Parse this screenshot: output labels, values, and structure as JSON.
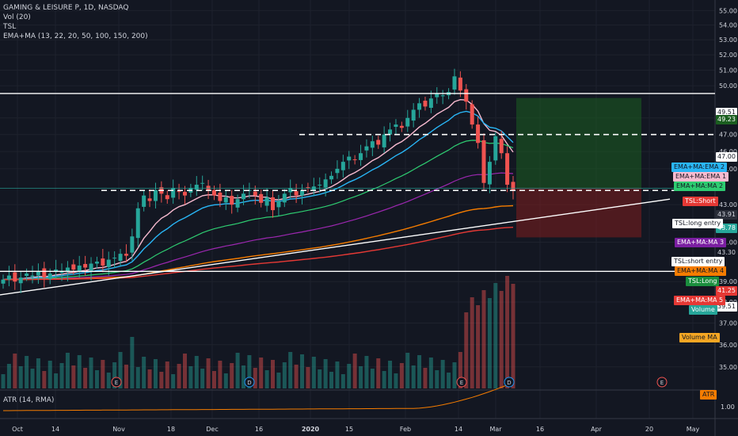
{
  "header": {
    "symbol_line": "GAMING & LEISURE P, 1D, NASDAQ",
    "indicators": [
      "Vol (20)",
      "TSL",
      "EMA+MA (13, 22, 20, 50, 100, 150, 200)"
    ]
  },
  "atr_pane": {
    "label": "ATR (14, RMA)",
    "axis_value": "1.00",
    "tag": "ATR"
  },
  "price_axis": {
    "ticks": [
      "55.00",
      "54.00",
      "53.00",
      "52.00",
      "51.00",
      "50.00",
      "48.00",
      "47.00",
      "46.00",
      "45.00",
      "43.00",
      "41.00",
      "39.00",
      "38.00",
      "37.00",
      "36.00",
      "35.00"
    ]
  },
  "price_tags": [
    {
      "text": "49.51",
      "bg": "#ffffff",
      "fg": "#131722"
    },
    {
      "text": "49.23",
      "bg": "#1b5e20",
      "fg": "#ffffff"
    },
    {
      "text": "47.00",
      "bg": "#ffffff",
      "fg": "#131722"
    },
    {
      "text": "43.91",
      "bg": "#2a2e39",
      "fg": "#d1d4dc"
    },
    {
      "text": "43.78",
      "bg": "#26a69a",
      "fg": "#ffffff"
    },
    {
      "text": "43.30",
      "bg": "#131722",
      "fg": "#d1d4dc"
    },
    {
      "text": "41.25",
      "bg": "#e53935",
      "fg": "#ffffff"
    },
    {
      "text": "39.51",
      "bg": "#ffffff",
      "fg": "#131722"
    }
  ],
  "legend_tags": [
    {
      "text": "EMA+MA:EMA 2",
      "bg": "#29b6f6",
      "fg": "#131722"
    },
    {
      "text": "EMA+MA:EMA 1",
      "bg": "#f8bbd0",
      "fg": "#131722"
    },
    {
      "text": "EMA+MA:MA 2",
      "bg": "#2ecc71",
      "fg": "#131722"
    },
    {
      "text": "TSL:Short",
      "bg": "#e53935",
      "fg": "#ffffff"
    },
    {
      "text": "TSL:long entry",
      "bg": "#ffffff",
      "fg": "#131722"
    },
    {
      "text": "EMA+MA:MA 3",
      "bg": "#7b1fa2",
      "fg": "#ffffff"
    },
    {
      "text": "TSL:short entry",
      "bg": "#ffffff",
      "fg": "#131722"
    },
    {
      "text": "EMA+MA:MA 4",
      "bg": "#f57c00",
      "fg": "#131722"
    },
    {
      "text": "TSL:Long",
      "bg": "#1b8e3e",
      "fg": "#ffffff"
    },
    {
      "text": "EMA+MA:MA 5",
      "bg": "#e53935",
      "fg": "#ffffff"
    },
    {
      "text": "Volume",
      "bg": "#26a69a",
      "fg": "#ffffff"
    },
    {
      "text": "Volume MA",
      "bg": "#f5a623",
      "fg": "#131722"
    }
  ],
  "time_axis": [
    "Oct",
    "14",
    "Nov",
    "18",
    "Dec",
    "16",
    "2020",
    "15",
    "Feb",
    "14",
    "Mar",
    "16",
    "Apr",
    "20",
    "May"
  ],
  "events": [
    "E",
    "D",
    "E",
    "D",
    "E"
  ],
  "colors": {
    "up": "#26a69a",
    "down": "#ef5350",
    "background": "#131722",
    "grid": "#1e222d"
  },
  "chart_data": {
    "type": "candlestick",
    "y_scale": "log",
    "x_range": [
      "2019-10-01",
      "2020-05-08"
    ],
    "y_range": [
      34.4,
      55.3
    ],
    "closes": [
      39.1,
      39.3,
      39.0,
      39.2,
      39.4,
      39.3,
      39.5,
      39.2,
      39.4,
      39.6,
      39.5,
      39.7,
      39.6,
      39.8,
      39.7,
      39.9,
      40.0,
      39.8,
      40.1,
      40.2,
      40.4,
      40.3,
      41.3,
      42.8,
      43.5,
      43.2,
      43.8,
      43.6,
      43.3,
      43.9,
      43.7,
      43.5,
      43.9,
      44.1,
      44.2,
      43.8,
      43.5,
      43.2,
      43.4,
      43.0,
      43.3,
      43.6,
      43.8,
      43.5,
      43.1,
      43.4,
      42.7,
      43.2,
      43.6,
      43.9,
      43.5,
      43.8,
      43.9,
      44.0,
      44.1,
      44.4,
      44.6,
      45.0,
      45.4,
      45.7,
      45.5,
      45.9,
      46.3,
      46.6,
      46.4,
      47.0,
      47.3,
      47.6,
      47.4,
      48.0,
      48.5,
      48.9,
      48.7,
      49.2,
      49.5,
      49.4,
      49.6,
      50.6,
      49.7,
      49.0,
      47.6,
      46.5,
      44.2,
      45.4,
      46.9,
      45.9,
      44.1,
      43.78
    ],
    "ema1_label": "EMA+MA:EMA 1",
    "ema2_label": "EMA+MA:EMA 2",
    "ma2_label": "EMA+MA:MA 2",
    "ma3_label": "EMA+MA:MA 3",
    "ma4_label": "EMA+MA:MA 4",
    "ma5_label": "EMA+MA:MA 5",
    "horizontal_levels": [
      49.51,
      47.0,
      43.91,
      43.78
    ],
    "trendline_from": [
      "2019-10-01",
      38.6
    ],
    "trendline_to": [
      "2020-05-08",
      43.3
    ],
    "position": {
      "entry": 43.91,
      "target": 49.23,
      "stop": 41.25,
      "from": "2020-03-05",
      "to": "2020-04-15"
    },
    "volume_ma_label": "Volume MA",
    "atr_label": "ATR (14, RMA)"
  }
}
